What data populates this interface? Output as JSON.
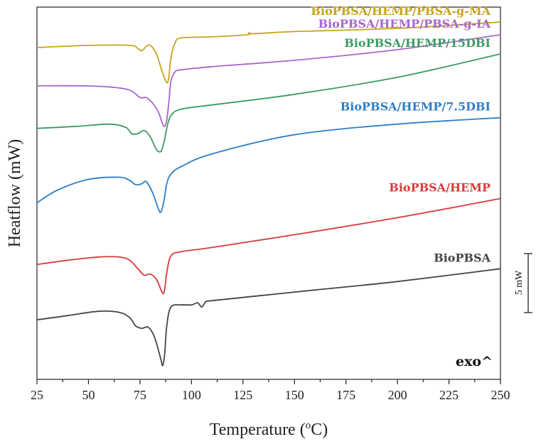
{
  "chart_data": {
    "type": "line",
    "xlabel": "Temperature (",
    "xlabel_sup": "o",
    "xlabel_unit": "C)",
    "ylabel": "Heatflow (mW)",
    "xlim": [
      25,
      250
    ],
    "xticks": [
      "25",
      "50",
      "75",
      "100",
      "125",
      "150",
      "175",
      "200",
      "225",
      "250"
    ],
    "exo_label": "exo^",
    "scale_bar_label": "5 mW",
    "scale_bar_mw": 5,
    "legend": "inline-labels",
    "grid": false,
    "series": [
      {
        "name": "BioPBSA",
        "color": "#454545",
        "x": [
          25,
          40,
          55,
          65,
          70,
          73,
          76,
          79,
          82,
          85,
          86,
          87,
          88,
          90,
          95,
          100,
          103,
          105,
          107,
          110,
          130,
          160,
          200,
          250
        ],
        "y": [
          -9.2,
          -9.0,
          -8.8,
          -8.85,
          -9.1,
          -9.5,
          -9.6,
          -9.55,
          -10.0,
          -11.0,
          -11.35,
          -10.8,
          -9.5,
          -8.6,
          -8.5,
          -8.5,
          -8.4,
          -8.6,
          -8.35,
          -8.3,
          -8.1,
          -7.8,
          -7.4,
          -6.8
        ]
      },
      {
        "name": "BioPBSA/HEMP",
        "color": "#d93a3a",
        "x": [
          25,
          40,
          55,
          65,
          70,
          74,
          77,
          80,
          83,
          86,
          87,
          88,
          90,
          95,
          110,
          150,
          200,
          250
        ],
        "y": [
          -6.6,
          -6.4,
          -6.25,
          -6.25,
          -6.4,
          -6.8,
          -7.1,
          -7.05,
          -7.3,
          -7.95,
          -7.75,
          -7.0,
          -6.2,
          -6.0,
          -5.8,
          -5.2,
          -4.4,
          -3.5
        ]
      },
      {
        "name": "BioPBSA/HEMP/7.5DBI",
        "color": "#2f7ec7",
        "x": [
          25,
          35,
          50,
          65,
          70,
          73,
          76,
          78,
          81,
          84,
          85,
          86,
          87,
          88,
          90,
          95,
          110,
          150,
          200,
          250
        ],
        "y": [
          -3.7,
          -3.1,
          -2.6,
          -2.5,
          -2.65,
          -2.85,
          -2.8,
          -2.7,
          -3.2,
          -4.0,
          -4.15,
          -3.9,
          -3.4,
          -2.8,
          -2.35,
          -2.0,
          -1.4,
          -0.5,
          0.0,
          0.3
        ]
      },
      {
        "name": "BioPBSA/HEMP/15DBI",
        "color": "#3c9b63",
        "x": [
          25,
          45,
          60,
          68,
          71,
          74,
          77,
          80,
          83,
          85,
          86,
          87,
          88,
          90,
          95,
          110,
          150,
          200,
          250
        ],
        "y": [
          -0.2,
          -0.1,
          0.0,
          -0.15,
          -0.45,
          -0.45,
          -0.3,
          -0.6,
          -1.2,
          -1.3,
          -1.1,
          -0.7,
          -0.2,
          0.4,
          0.7,
          0.9,
          1.4,
          2.2,
          3.3
        ]
      },
      {
        "name": "BioPBSA/HEMP/PBSA-g-IA",
        "color": "#a866cc",
        "x": [
          25,
          45,
          60,
          70,
          75,
          78,
          81,
          84,
          86,
          87,
          88,
          89,
          90,
          92,
          95,
          110,
          150,
          200,
          250
        ],
        "y": [
          1.8,
          1.8,
          1.75,
          1.6,
          1.25,
          1.25,
          1.0,
          0.55,
          0.0,
          -0.1,
          0.2,
          1.0,
          2.0,
          2.45,
          2.55,
          2.7,
          3.0,
          3.5,
          4.2
        ]
      },
      {
        "name": "BioPBSA/HEMP/PBSA-g-MA",
        "color": "#c8a31b",
        "x": [
          25,
          50,
          70,
          74,
          76,
          78,
          80,
          83,
          86,
          88,
          89,
          90,
          92,
          95,
          110,
          127,
          128,
          130,
          150,
          200,
          250
        ],
        "y": [
          3.6,
          3.7,
          3.7,
          3.55,
          3.45,
          3.65,
          3.7,
          3.3,
          2.4,
          1.95,
          2.2,
          3.1,
          3.8,
          4.05,
          4.1,
          4.2,
          4.3,
          4.25,
          4.35,
          4.5,
          4.8
        ]
      }
    ]
  }
}
